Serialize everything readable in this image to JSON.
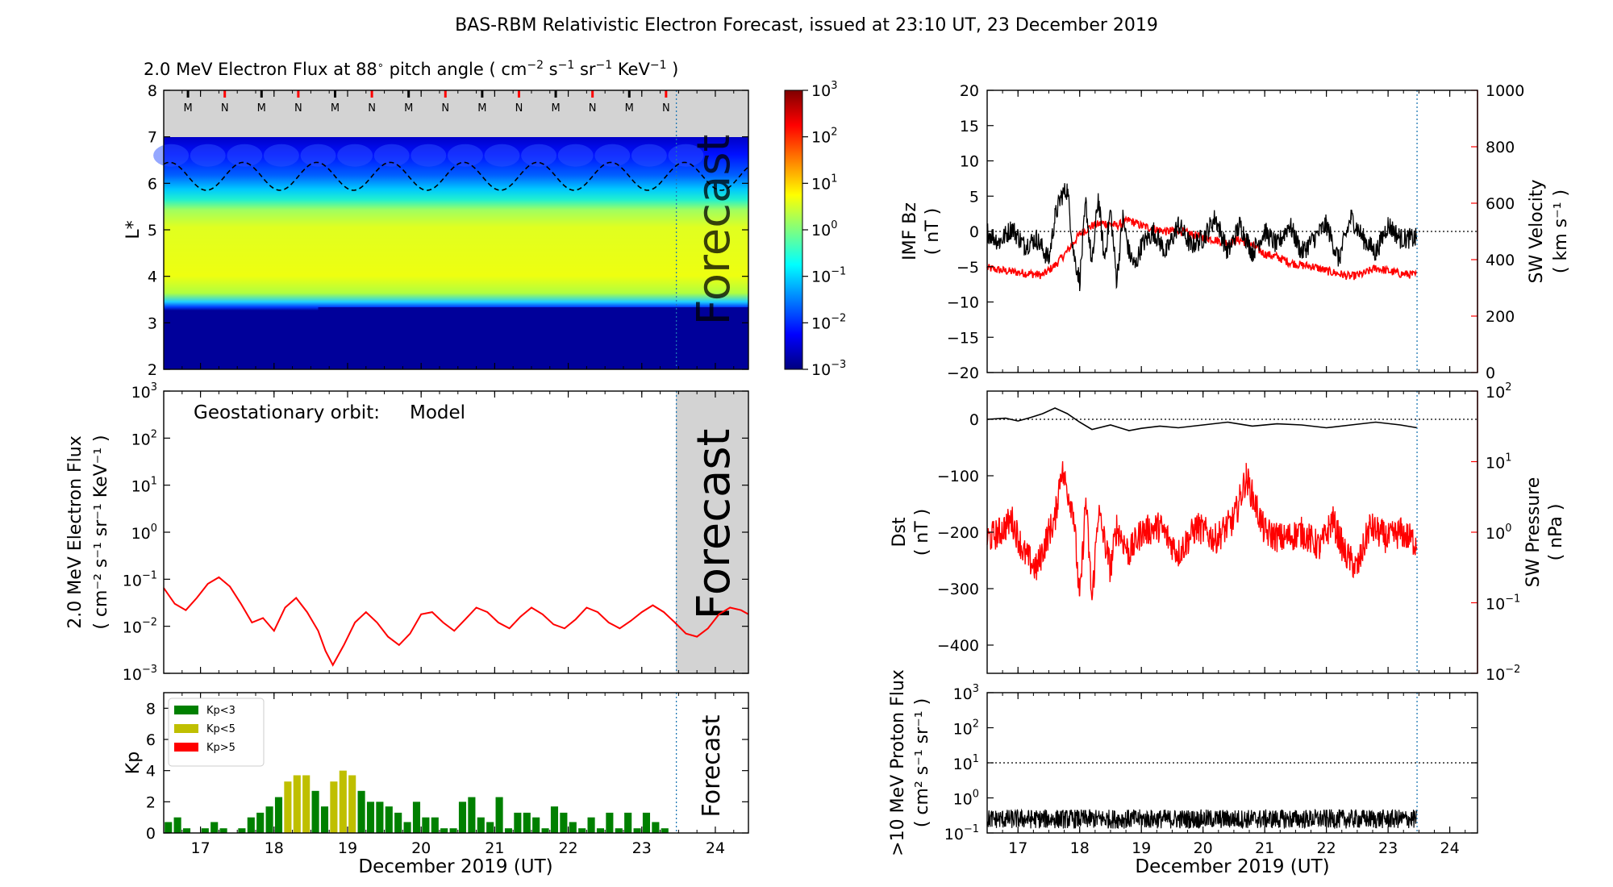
{
  "figure": {
    "title": "BAS-RBM Relativistic Electron Forecast, issued at 23:10 UT, 23 December 2019"
  },
  "colors": {
    "model": "#ff0000",
    "kp_low": "#008000",
    "kp_mid": "#bfbf00",
    "kp_high": "#ff0000",
    "forecast_shade": "#d3d3d3",
    "orbit_M": "#000000",
    "orbit_N": "#ff0000"
  },
  "chart_data": [
    {
      "id": "lstar_map",
      "type": "heatmap",
      "title_main": "2.0 MeV Electron Flux at 88",
      "title_deg": "∘",
      "title_units_open": " pitch angle ( cm",
      "title_units_exp1": "−2",
      "title_units_s": " s",
      "title_units_exp2": "−1",
      "title_units_sr": " sr",
      "title_units_exp3": "−1",
      "title_units_kev": " KeV",
      "title_units_exp4": "−1",
      "title_units_close": " )",
      "ylabel": "L*",
      "ylim": [
        2,
        8
      ],
      "yticks": [
        "2",
        "3",
        "4",
        "5",
        "6",
        "7",
        "8"
      ],
      "xlim": [
        16.5,
        24.45
      ],
      "forecast_start": 23.47,
      "forecast_label": "Forecast",
      "orbit_labels": [
        "M",
        "N",
        "M",
        "N",
        "M",
        "N",
        "M",
        "N",
        "M",
        "N",
        "M",
        "N",
        "M",
        "N"
      ],
      "orbit_x": [
        16.83,
        17.33,
        17.83,
        18.33,
        18.83,
        19.33,
        19.83,
        20.33,
        20.83,
        21.33,
        21.83,
        22.33,
        22.83,
        23.33
      ],
      "plasmapause_L": 3.3,
      "dashed_L_min": 5.85,
      "dashed_L_max": 6.45,
      "colorbar_ticks": [
        "10",
        "10",
        "10",
        "10",
        "10",
        "10",
        "10"
      ],
      "colorbar_exps": [
        "−3",
        "−2",
        "−1",
        "0",
        "1",
        "2",
        "3"
      ],
      "clim_log10": [
        -3,
        3
      ]
    },
    {
      "id": "geo_flux",
      "type": "line",
      "annotation_label": "Geostationary orbit:",
      "annotation_series": "Model",
      "ylabel_line1": "2.0 MeV Electron Flux",
      "ylabel_line2": "( cm⁻² s⁻¹ sr⁻¹ KeV⁻¹ )",
      "ylim_log10": [
        -3,
        3
      ],
      "yticks": [
        "10",
        "10",
        "10",
        "10",
        "10",
        "10",
        "10"
      ],
      "ytick_exps": [
        "−3",
        "−2",
        "−1",
        "0",
        "1",
        "2",
        "3"
      ],
      "xlim": [
        16.5,
        24.45
      ],
      "forecast_start": 23.47,
      "forecast_label": "Forecast",
      "series": [
        {
          "name": "Model",
          "x": [
            16.5,
            16.65,
            16.8,
            16.95,
            17.1,
            17.25,
            17.4,
            17.55,
            17.7,
            17.85,
            18.0,
            18.15,
            18.3,
            18.45,
            18.6,
            18.7,
            18.8,
            18.95,
            19.1,
            19.25,
            19.4,
            19.55,
            19.7,
            19.85,
            20.0,
            20.15,
            20.3,
            20.45,
            20.6,
            20.75,
            20.9,
            21.05,
            21.2,
            21.35,
            21.5,
            21.65,
            21.8,
            21.95,
            22.1,
            22.25,
            22.4,
            22.55,
            22.7,
            22.85,
            23.0,
            23.15,
            23.3,
            23.45,
            23.6,
            23.75,
            23.9,
            24.05,
            24.2,
            24.35,
            24.45
          ],
          "y": [
            0.065,
            0.03,
            0.022,
            0.04,
            0.08,
            0.11,
            0.07,
            0.03,
            0.012,
            0.015,
            0.008,
            0.025,
            0.04,
            0.02,
            0.008,
            0.003,
            0.0015,
            0.004,
            0.012,
            0.02,
            0.012,
            0.006,
            0.004,
            0.007,
            0.018,
            0.02,
            0.012,
            0.008,
            0.014,
            0.025,
            0.02,
            0.012,
            0.009,
            0.016,
            0.025,
            0.018,
            0.011,
            0.009,
            0.014,
            0.025,
            0.02,
            0.012,
            0.009,
            0.013,
            0.02,
            0.028,
            0.02,
            0.012,
            0.007,
            0.006,
            0.009,
            0.018,
            0.025,
            0.022,
            0.018
          ]
        }
      ]
    },
    {
      "id": "kp",
      "type": "bar",
      "ylabel": "Kp",
      "ylim": [
        0,
        9
      ],
      "yticks": [
        "0",
        "2",
        "4",
        "6",
        "8"
      ],
      "xlim": [
        16.5,
        24.45
      ],
      "xticks": [
        "17",
        "18",
        "19",
        "20",
        "21",
        "22",
        "23",
        "24"
      ],
      "xlabel": "December 2019 (UT)",
      "forecast_start": 23.47,
      "forecast_label": "Forecast",
      "legend": [
        "Kp<3",
        "Kp<5",
        "Kp>5"
      ],
      "legend_placement": "top-left",
      "bar_width": 0.1,
      "x": [
        16.5625,
        16.6875,
        16.8125,
        16.9375,
        17.0625,
        17.1875,
        17.3125,
        17.4375,
        17.5625,
        17.6875,
        17.8125,
        17.9375,
        18.0625,
        18.1875,
        18.3125,
        18.4375,
        18.5625,
        18.6875,
        18.8125,
        18.9375,
        19.0625,
        19.1875,
        19.3125,
        19.4375,
        19.5625,
        19.6875,
        19.8125,
        19.9375,
        20.0625,
        20.1875,
        20.3125,
        20.4375,
        20.5625,
        20.6875,
        20.8125,
        20.9375,
        21.0625,
        21.1875,
        21.3125,
        21.4375,
        21.5625,
        21.6875,
        21.8125,
        21.9375,
        22.0625,
        22.1875,
        22.3125,
        22.4375,
        22.5625,
        22.6875,
        22.8125,
        22.9375,
        23.0625,
        23.1875,
        23.3125
      ],
      "values": [
        0.7,
        1.0,
        0.3,
        0,
        0.3,
        0.7,
        0.3,
        0,
        0.3,
        1.0,
        1.3,
        1.7,
        2.3,
        3.3,
        3.7,
        3.7,
        2.7,
        1.7,
        3.3,
        4.0,
        3.7,
        2.7,
        2.0,
        2.0,
        1.7,
        1.3,
        0.7,
        2.0,
        1.0,
        1.0,
        0.3,
        0.3,
        2.0,
        2.3,
        1.0,
        0.7,
        2.3,
        0.3,
        1.3,
        1.3,
        1.0,
        0.3,
        1.7,
        1.3,
        0.7,
        0.3,
        1.0,
        0.3,
        1.3,
        0.3,
        1.3,
        0.3,
        1.3,
        0.7,
        0.3
      ]
    },
    {
      "id": "imf_sw",
      "type": "line",
      "ylabel_left_line1": "IMF Bz",
      "ylabel_left_line2": "( nT )",
      "ylim_left": [
        -20,
        20
      ],
      "yticks_left": [
        "−20",
        "−15",
        "−10",
        "−5",
        "0",
        "5",
        "10",
        "15",
        "20"
      ],
      "ylabel_right_line1": "SW Velocity",
      "ylabel_right_line2": "( km s⁻¹ )",
      "ylim_right": [
        0,
        1000
      ],
      "yticks_right": [
        "0",
        "200",
        "400",
        "600",
        "800",
        "1000"
      ],
      "xlim": [
        16.5,
        24.45
      ],
      "now": 23.47,
      "series": [
        {
          "name": "IMF Bz",
          "axis": "left",
          "x": [
            16.5,
            16.7,
            16.9,
            17.1,
            17.3,
            17.5,
            17.6,
            17.7,
            17.8,
            17.9,
            18.0,
            18.1,
            18.2,
            18.3,
            18.4,
            18.5,
            18.6,
            18.7,
            18.8,
            18.9,
            19.0,
            19.2,
            19.4,
            19.6,
            19.8,
            20.0,
            20.2,
            20.4,
            20.6,
            20.8,
            21.0,
            21.2,
            21.4,
            21.6,
            21.8,
            22.0,
            22.2,
            22.4,
            22.6,
            22.8,
            23.0,
            23.2,
            23.47
          ],
          "y": [
            0,
            -1.5,
            0.5,
            -2,
            -1,
            -4,
            2,
            5,
            6,
            -3,
            -7,
            4,
            -5,
            5,
            -4,
            3,
            -7,
            2,
            -3,
            -5,
            -2,
            0,
            -3,
            1,
            -2,
            -1,
            2,
            -3,
            1,
            -3,
            0,
            -2,
            1,
            -3,
            -1,
            1,
            -4,
            2,
            -1,
            -3,
            1,
            -1,
            -1
          ]
        },
        {
          "name": "SW Velocity",
          "axis": "right",
          "x": [
            16.5,
            16.8,
            17.0,
            17.2,
            17.4,
            17.6,
            17.8,
            18.0,
            18.2,
            18.4,
            18.6,
            18.8,
            19.0,
            19.2,
            19.4,
            19.6,
            19.8,
            20.0,
            20.2,
            20.4,
            20.6,
            20.8,
            21.0,
            21.2,
            21.4,
            21.6,
            21.8,
            22.0,
            22.2,
            22.4,
            22.6,
            22.8,
            23.0,
            23.2,
            23.47
          ],
          "y": [
            370,
            360,
            355,
            350,
            345,
            380,
            430,
            490,
            520,
            530,
            520,
            540,
            520,
            510,
            500,
            505,
            490,
            480,
            470,
            460,
            470,
            450,
            420,
            410,
            390,
            380,
            375,
            360,
            350,
            340,
            350,
            370,
            360,
            350,
            345
          ]
        }
      ]
    },
    {
      "id": "dst_pressure",
      "type": "line",
      "ylabel_left_line1": "Dst",
      "ylabel_left_line2": "( nT )",
      "ylim_left": [
        -450,
        50
      ],
      "yticks_left": [
        "−400",
        "−300",
        "−200",
        "−100",
        "0"
      ],
      "ylabel_right_line1": "SW Pressure",
      "ylabel_right_line2": "( nPa )",
      "ylim_right_log10": [
        -2,
        2
      ],
      "yticks_right": [
        "10",
        "10",
        "10",
        "10",
        "10"
      ],
      "ytick_right_exps": [
        "−2",
        "−1",
        "0",
        "1",
        "2"
      ],
      "xlim": [
        16.5,
        24.45
      ],
      "now": 23.47,
      "series": [
        {
          "name": "Dst",
          "axis": "left",
          "x": [
            16.5,
            16.8,
            17.0,
            17.2,
            17.4,
            17.6,
            17.8,
            18.0,
            18.2,
            18.5,
            18.8,
            19.0,
            19.3,
            19.6,
            20.0,
            20.4,
            20.8,
            21.2,
            21.6,
            22.0,
            22.4,
            22.8,
            23.2,
            23.47
          ],
          "y": [
            0,
            2,
            -3,
            3,
            10,
            20,
            10,
            -5,
            -18,
            -10,
            -20,
            -16,
            -12,
            -15,
            -10,
            -5,
            -12,
            -8,
            -10,
            -15,
            -10,
            -5,
            -10,
            -15
          ]
        },
        {
          "name": "SW Pressure",
          "axis": "right",
          "x": [
            16.5,
            16.7,
            16.9,
            17.1,
            17.3,
            17.5,
            17.6,
            17.7,
            17.9,
            18.0,
            18.1,
            18.2,
            18.3,
            18.5,
            18.6,
            18.8,
            19.0,
            19.3,
            19.6,
            19.9,
            20.2,
            20.5,
            20.7,
            21.0,
            21.3,
            21.6,
            21.9,
            22.1,
            22.3,
            22.5,
            22.7,
            23.0,
            23.2,
            23.47
          ],
          "y": [
            0.8,
            1.0,
            1.5,
            0.5,
            0.3,
            1.0,
            1.5,
            8.0,
            2.0,
            0.1,
            3.0,
            0.1,
            2.0,
            0.3,
            1.2,
            0.5,
            1.0,
            1.2,
            0.5,
            1.2,
            0.8,
            1.5,
            6.0,
            1.0,
            0.8,
            1.0,
            0.6,
            1.5,
            0.5,
            0.3,
            1.2,
            0.8,
            1.0,
            0.7
          ]
        }
      ]
    },
    {
      "id": "proton",
      "type": "line",
      "ylabel_line1": ">10 MeV Proton Flux",
      "ylabel_line2": "( cm² s⁻¹ sr⁻¹ )",
      "ylim_log10": [
        -1,
        3
      ],
      "yticks": [
        "10",
        "10",
        "10",
        "10",
        "10"
      ],
      "ytick_exps": [
        "−1",
        "0",
        "1",
        "2",
        "3"
      ],
      "threshold": 10,
      "xlim": [
        16.5,
        24.45
      ],
      "xticks": [
        "17",
        "18",
        "19",
        "20",
        "21",
        "22",
        "23",
        "24"
      ],
      "xlabel": "December 2019 (UT)",
      "now": 23.47,
      "series": [
        {
          "name": ">10 MeV Proton Flux",
          "x": [
            16.5,
            23.47
          ],
          "y": [
            0.25,
            0.25
          ]
        }
      ]
    }
  ]
}
